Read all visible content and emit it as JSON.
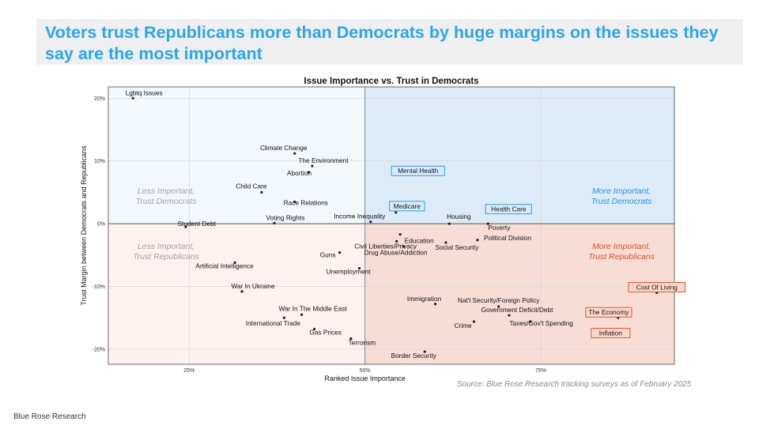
{
  "headline": "Voters trust Republicans more than Democrats by huge margins on the issues they say are the most important",
  "source": "Source: Blue Rose Research tracking surveys as of February 2025",
  "footer": "Blue Rose Research",
  "colors": {
    "headline": "#2aa6ee",
    "blue_region": "#dcebf8",
    "light_blue_region": "#f3f8fd",
    "red_region": "#f8ddd5",
    "light_red_region": "#fdf2ef",
    "blue_text": "#2e8fd6",
    "red_text": "#e04e26",
    "gray_text": "#a3a3a3"
  },
  "chart_data": {
    "type": "scatter",
    "title": "Issue Importance vs. Trust in Democrats",
    "xlabel": "Ranked Issue Importance",
    "ylabel": "Trust Margin between Democrats and Republicans",
    "xlim": [
      13.5,
      94
    ],
    "ylim": [
      -22.4,
      21.8
    ],
    "x_ticks": [
      25,
      50,
      75
    ],
    "x_tick_labels": [
      "25%",
      "50%",
      "75%"
    ],
    "y_ticks": [
      20,
      10,
      0,
      -10,
      -20
    ],
    "y_tick_labels": [
      "20%",
      "10%",
      "0%",
      "-10%",
      "-20%"
    ],
    "quadrant_labels": [
      {
        "key": "less_dem",
        "line1": "Less Important,",
        "line2": "Trust Democrats",
        "color": "gray"
      },
      {
        "key": "more_dem",
        "line1": "More Important,",
        "line2": "Trust Democrats",
        "color": "blue"
      },
      {
        "key": "less_rep",
        "line1": "Less Important,",
        "line2": "Trust Republicans",
        "color": "gray"
      },
      {
        "key": "more_rep",
        "line1": "More Important,",
        "line2": "Trust Republicans",
        "color": "red"
      }
    ],
    "points": [
      {
        "label": "Lgbtq Issues",
        "x": 17,
        "y": 20
      },
      {
        "label": "Climate Change",
        "x": 40,
        "y": 11.2
      },
      {
        "label": "The Environment",
        "x": 42.5,
        "y": 9.2
      },
      {
        "label": "Abortion",
        "x": 42,
        "y": 8.2
      },
      {
        "label": "Child Care",
        "x": 35.3,
        "y": 5
      },
      {
        "label": "Race Relations",
        "x": 40,
        "y": 3.5
      },
      {
        "label": "Voting Rights",
        "x": 37.1,
        "y": 0.1
      },
      {
        "label": "Income Inequality",
        "x": 50.8,
        "y": 0.3
      },
      {
        "label": "Student Debt",
        "x": 24.5,
        "y": -0.5
      },
      {
        "label": "Mental Health",
        "x": 59,
        "y": 8.8,
        "box": "blue"
      },
      {
        "label": "Medicare",
        "x": 54.4,
        "y": 1.8,
        "box": "blue"
      },
      {
        "label": "Housing",
        "x": 62,
        "y": 0
      },
      {
        "label": "Health Care",
        "x": 72,
        "y": 2.2,
        "box": "blue"
      },
      {
        "label": "Poverty",
        "x": 67.5,
        "y": 0
      },
      {
        "label": "Education",
        "x": 55,
        "y": -1.7
      },
      {
        "label": "Civil Liberties/Privacy",
        "x": 54.5,
        "y": -2.8
      },
      {
        "label": "Political Division",
        "x": 66,
        "y": -2.6
      },
      {
        "label": "Social Security",
        "x": 61.5,
        "y": -3
      },
      {
        "label": "Drug Abuse/Addiction",
        "x": 55.5,
        "y": -3.6
      },
      {
        "label": "Guns",
        "x": 46.4,
        "y": -4.6
      },
      {
        "label": "Artificial Intelligence",
        "x": 31.5,
        "y": -6.2
      },
      {
        "label": "Unemployment",
        "x": 49.2,
        "y": -7.1
      },
      {
        "label": "War In Ukraine",
        "x": 32.5,
        "y": -10.8
      },
      {
        "label": "Cost Of Living",
        "x": 91.5,
        "y": -11,
        "box": "red"
      },
      {
        "label": "Immigration",
        "x": 60,
        "y": -12.8
      },
      {
        "label": "Nat'l Security/Foreign Policy",
        "x": 69,
        "y": -13.2
      },
      {
        "label": "War In The Middle East",
        "x": 41,
        "y": -14.5
      },
      {
        "label": "Government Deficit/Debt",
        "x": 70.5,
        "y": -14.6
      },
      {
        "label": "The Economy",
        "x": 86,
        "y": -15,
        "box": "red"
      },
      {
        "label": "International Trade",
        "x": 38.5,
        "y": -15
      },
      {
        "label": "Taxes/Gov't Spending",
        "x": 73.5,
        "y": -15.6
      },
      {
        "label": "Crime",
        "x": 65.5,
        "y": -15.6
      },
      {
        "label": "Gas Prices",
        "x": 42.8,
        "y": -16.8
      },
      {
        "label": "Inflation",
        "x": 86.5,
        "y": -16.8,
        "box": "red"
      },
      {
        "label": "Terrorism",
        "x": 48,
        "y": -18.3
      },
      {
        "label": "Border Security",
        "x": 58.5,
        "y": -20.4
      }
    ]
  }
}
